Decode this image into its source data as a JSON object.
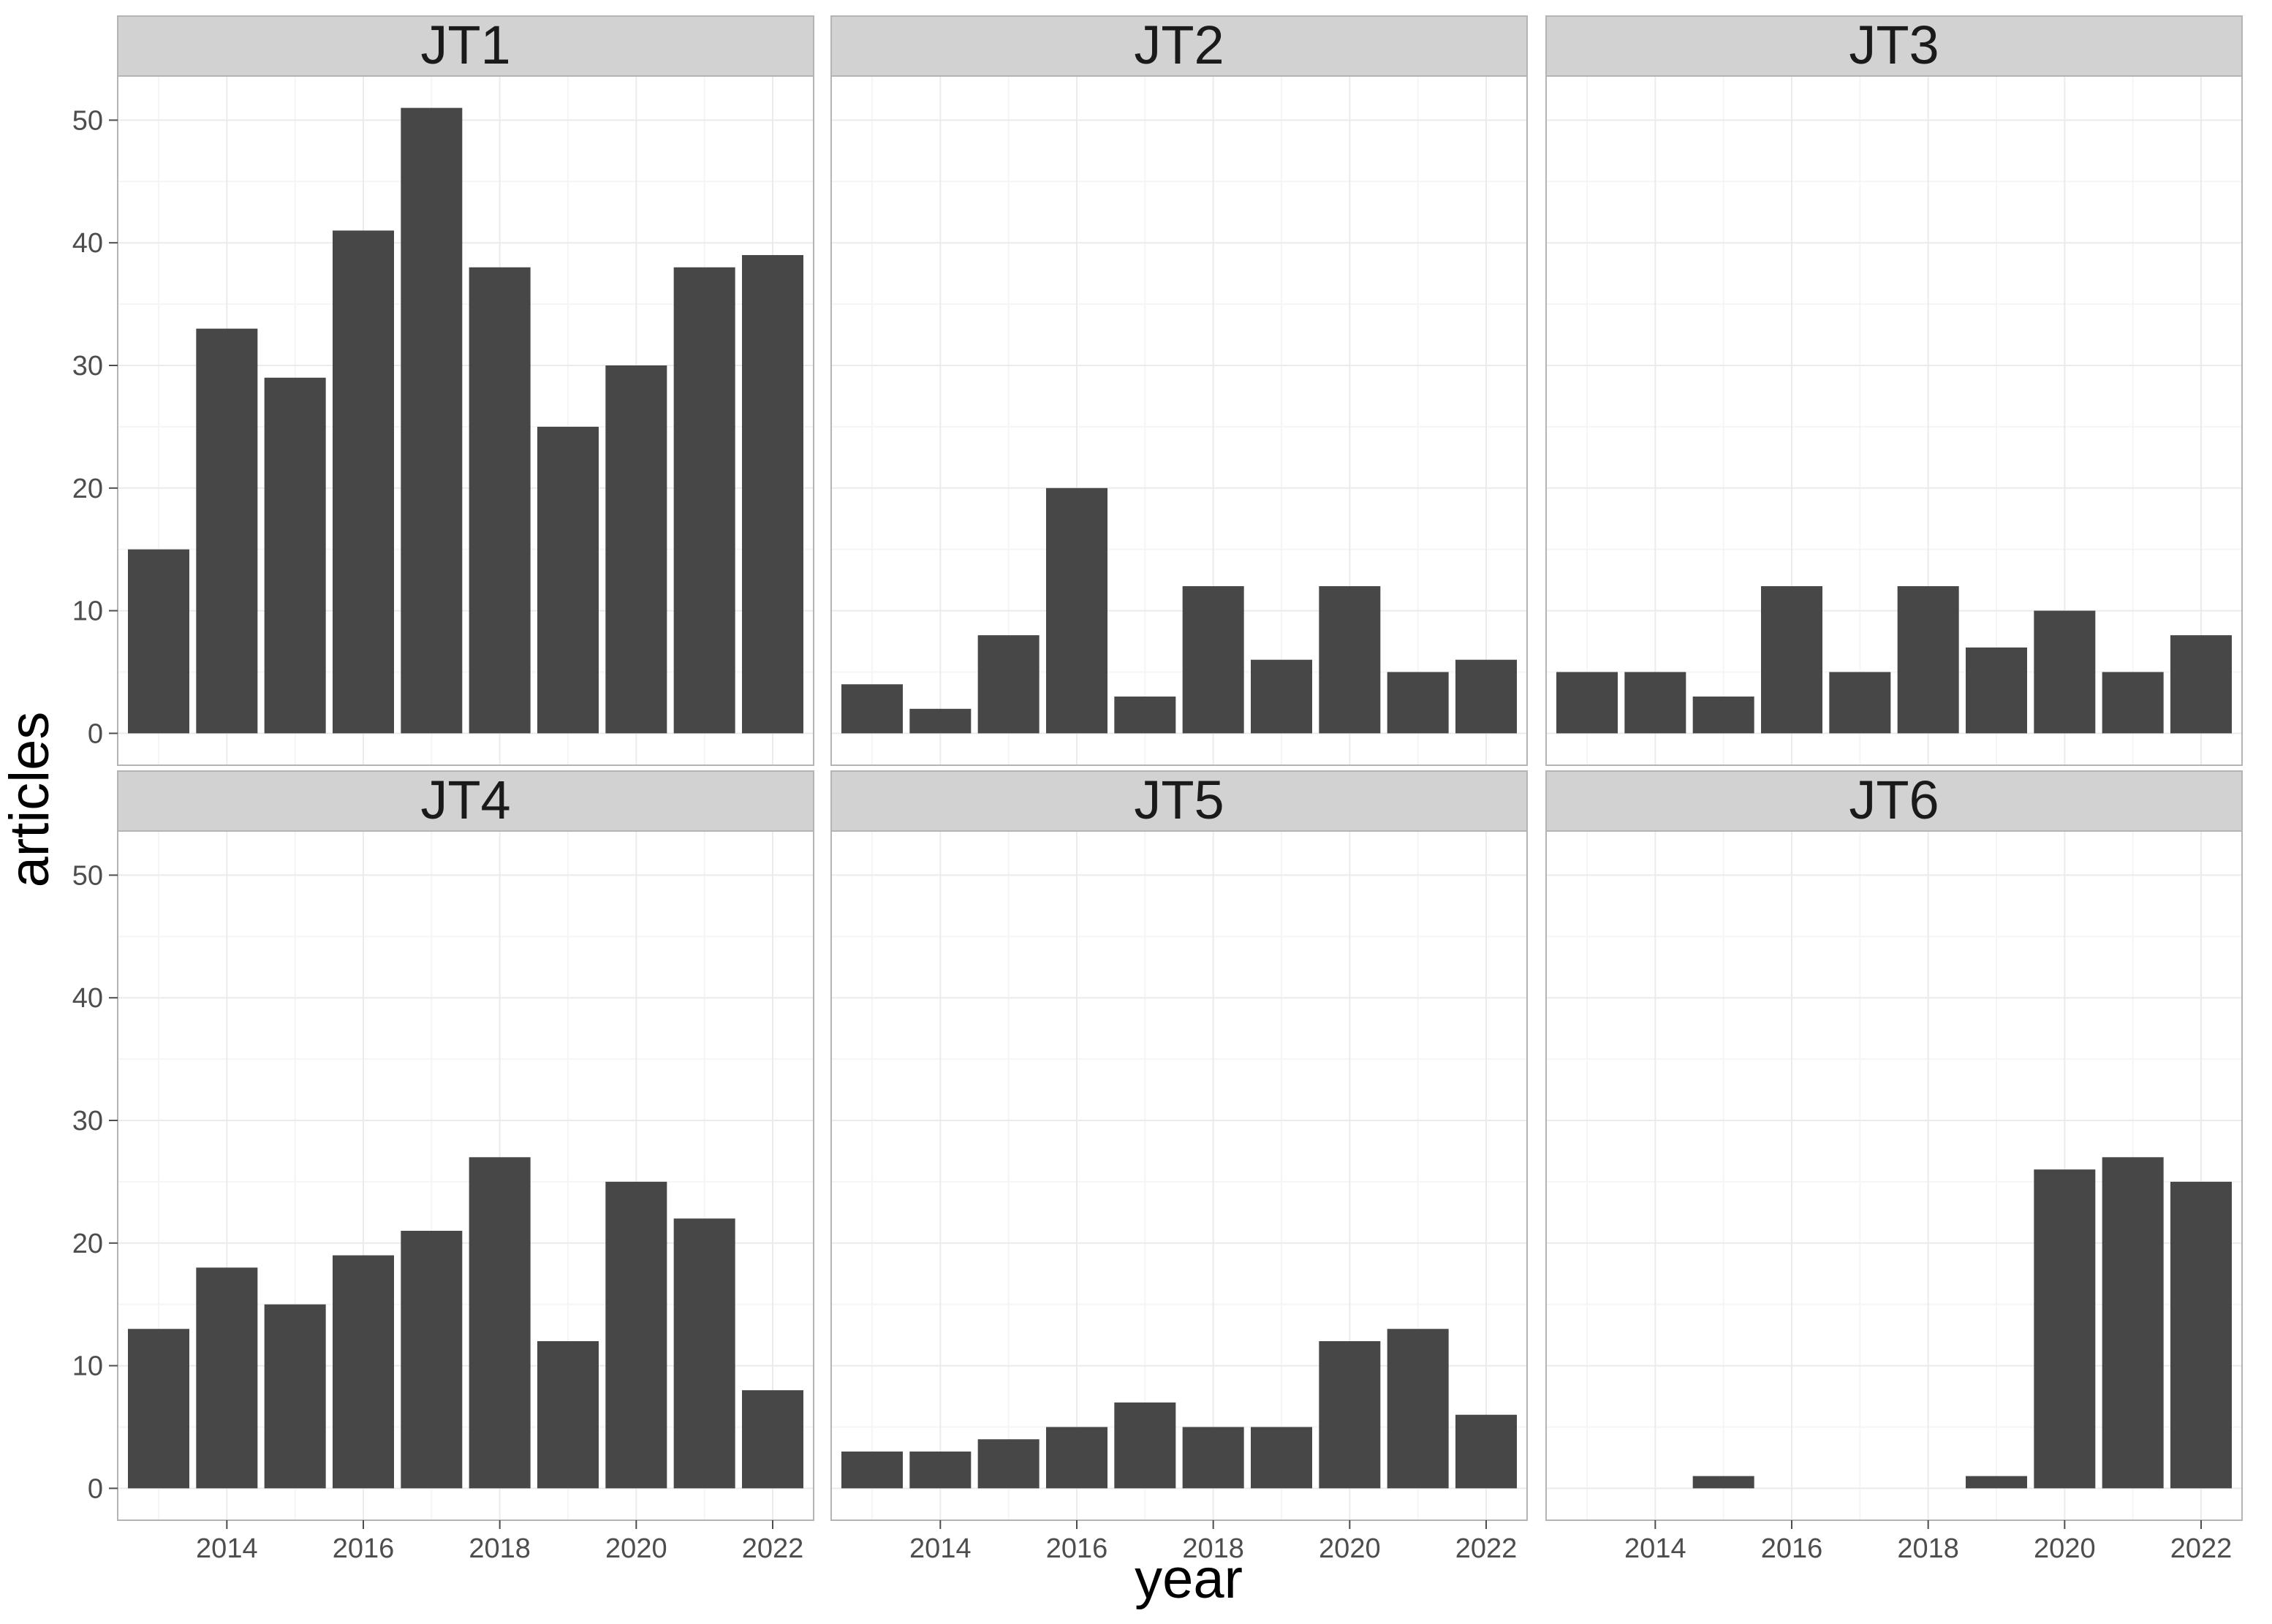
{
  "chart_data": {
    "type": "bar",
    "xlabel": "year",
    "ylabel": "articles",
    "ylim": [
      -2.6,
      53.6
    ],
    "xlim": [
      2012.4,
      2022.6
    ],
    "yticks": [
      0,
      10,
      20,
      30,
      40,
      50
    ],
    "xticks": [
      2014,
      2016,
      2018,
      2020,
      2022
    ],
    "grid": true,
    "facets": [
      "JT1",
      "JT2",
      "JT3",
      "JT4",
      "JT5",
      "JT6"
    ],
    "facet_layout": {
      "rows": 2,
      "cols": 3
    },
    "x": [
      2013,
      2014,
      2015,
      2016,
      2017,
      2018,
      2019,
      2020,
      2021,
      2022
    ],
    "series": [
      {
        "facet": "JT1",
        "values": [
          15,
          33,
          29,
          41,
          51,
          38,
          25,
          30,
          38,
          39
        ]
      },
      {
        "facet": "JT2",
        "values": [
          4,
          2,
          8,
          20,
          3,
          12,
          6,
          12,
          5,
          6
        ]
      },
      {
        "facet": "JT3",
        "values": [
          5,
          5,
          3,
          12,
          5,
          12,
          7,
          10,
          5,
          8
        ]
      },
      {
        "facet": "JT4",
        "values": [
          13,
          18,
          15,
          19,
          21,
          27,
          12,
          25,
          22,
          8
        ]
      },
      {
        "facet": "JT5",
        "values": [
          3,
          3,
          4,
          5,
          7,
          5,
          5,
          12,
          13,
          6
        ]
      },
      {
        "facet": "JT6",
        "values": [
          0,
          0,
          1,
          0,
          0,
          0,
          1,
          26,
          27,
          25
        ]
      }
    ]
  },
  "colors": {
    "bar": "#474747",
    "strip_bg": "#d2d2d2",
    "panel_border": "#b4b4b4",
    "grid_major": "#ebebeb",
    "grid_minor": "#f5f5f5",
    "tick": "#4d4d4d"
  }
}
